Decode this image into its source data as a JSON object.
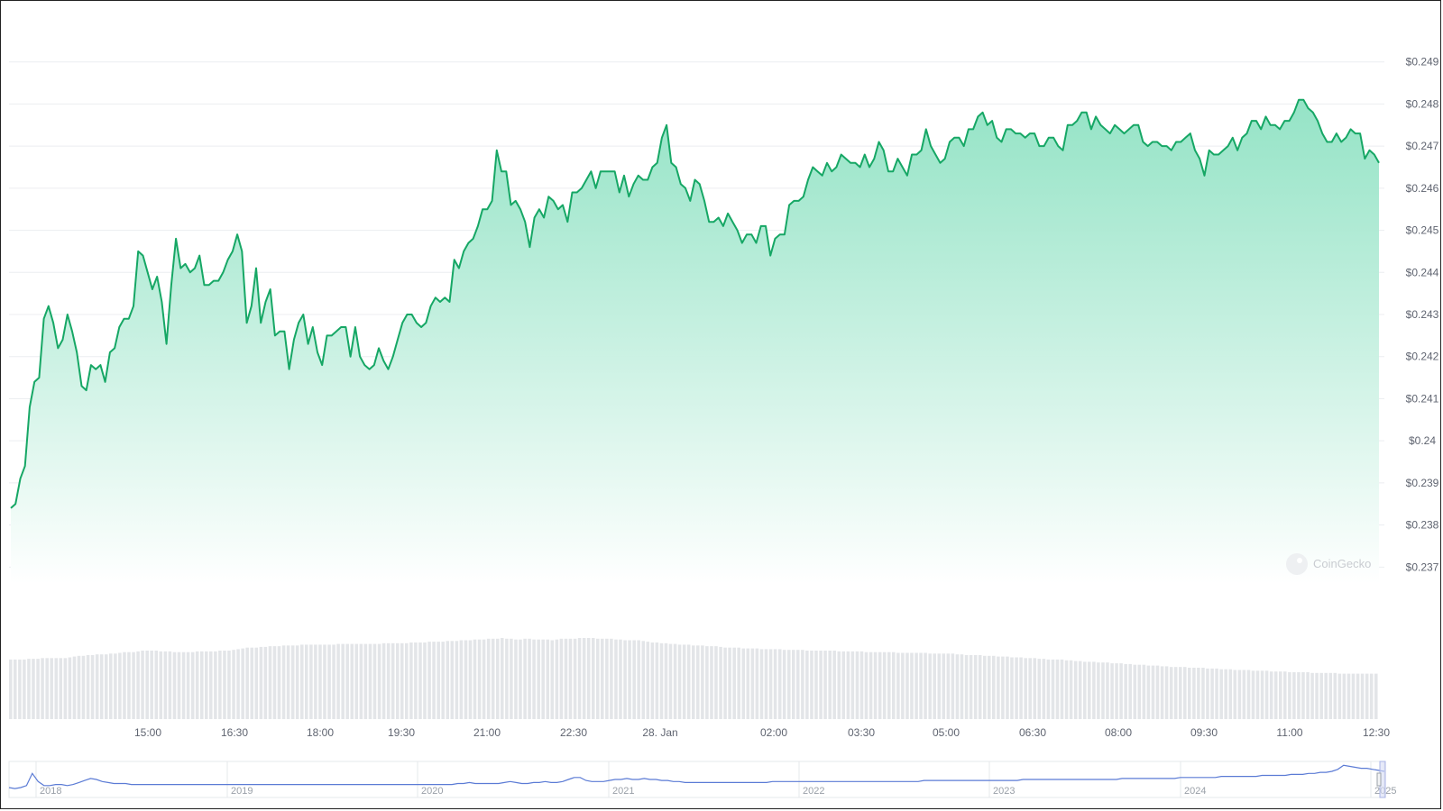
{
  "watermark": "CoinGecko",
  "colors": {
    "line": "#16a765",
    "fill_top": "#8fe2c3",
    "fill_bottom": "#ffffff",
    "volume": "#e3e5e8",
    "navigator_line": "#5b7bd5",
    "grid": "#eceef1",
    "axis_text": "#5f6470"
  },
  "chart_data": [
    {
      "type": "line",
      "title": "",
      "xlabel": "",
      "ylabel": "",
      "yticks": [
        "$0.237",
        "$0.238",
        "$0.239",
        "$0.24",
        "$0.241",
        "$0.242",
        "$0.243",
        "$0.244",
        "$0.245",
        "$0.246",
        "$0.247",
        "$0.248",
        "$0.249"
      ],
      "ylim": [
        0.2366,
        0.2494
      ],
      "xticks": [
        "15:00",
        "16:30",
        "18:00",
        "19:30",
        "21:00",
        "22:30",
        "28. Jan",
        "02:00",
        "03:30",
        "05:00",
        "06:30",
        "08:00",
        "09:30",
        "11:00",
        "12:30"
      ],
      "x_start": "27 Jan 12:36",
      "x_end": "28 Jan 12:30",
      "grid": true,
      "fill": "area-gradient",
      "price": [
        0.2384,
        0.2385,
        0.2391,
        0.2394,
        0.2408,
        0.2414,
        0.2415,
        0.2429,
        0.2432,
        0.2428,
        0.2422,
        0.2424,
        0.243,
        0.2426,
        0.2421,
        0.2413,
        0.2412,
        0.2418,
        0.2417,
        0.2418,
        0.2414,
        0.2421,
        0.2422,
        0.2427,
        0.2429,
        0.2429,
        0.2432,
        0.2445,
        0.2444,
        0.244,
        0.2436,
        0.2439,
        0.2433,
        0.2423,
        0.2437,
        0.2448,
        0.2441,
        0.2442,
        0.244,
        0.2441,
        0.2444,
        0.2437,
        0.2437,
        0.2438,
        0.2438,
        0.244,
        0.2443,
        0.2445,
        0.2449,
        0.2445,
        0.2428,
        0.2432,
        0.2441,
        0.2428,
        0.2433,
        0.2436,
        0.2425,
        0.2426,
        0.2426,
        0.2417,
        0.2424,
        0.2428,
        0.243,
        0.2423,
        0.2427,
        0.2421,
        0.2418,
        0.2425,
        0.2425,
        0.2426,
        0.2427,
        0.2427,
        0.242,
        0.2427,
        0.242,
        0.2418,
        0.2417,
        0.2418,
        0.2422,
        0.2419,
        0.2417,
        0.242,
        0.2424,
        0.2428,
        0.243,
        0.243,
        0.2428,
        0.2427,
        0.2428,
        0.2432,
        0.2434,
        0.2433,
        0.2434,
        0.2433,
        0.2443,
        0.2441,
        0.2445,
        0.2447,
        0.2448,
        0.2451,
        0.2455,
        0.2455,
        0.2457,
        0.2469,
        0.2464,
        0.2464,
        0.2456,
        0.2457,
        0.2455,
        0.2452,
        0.2446,
        0.2453,
        0.2455,
        0.2453,
        0.2458,
        0.2457,
        0.2455,
        0.2456,
        0.2452,
        0.2459,
        0.2459,
        0.246,
        0.2462,
        0.2464,
        0.246,
        0.2464,
        0.2464,
        0.2464,
        0.2464,
        0.2459,
        0.2463,
        0.2458,
        0.2461,
        0.2463,
        0.2462,
        0.2462,
        0.2465,
        0.2466,
        0.2472,
        0.2475,
        0.2466,
        0.2465,
        0.2461,
        0.246,
        0.2457,
        0.2462,
        0.2461,
        0.2457,
        0.2452,
        0.2452,
        0.2453,
        0.2451,
        0.2454,
        0.2452,
        0.245,
        0.2447,
        0.2449,
        0.2449,
        0.2447,
        0.2451,
        0.2451,
        0.2444,
        0.2448,
        0.2449,
        0.2449,
        0.2456,
        0.2457,
        0.2457,
        0.2458,
        0.2462,
        0.2465,
        0.2464,
        0.2463,
        0.2466,
        0.2464,
        0.2465,
        0.2468,
        0.2467,
        0.2466,
        0.2466,
        0.2465,
        0.2468,
        0.2465,
        0.2467,
        0.2471,
        0.2469,
        0.2464,
        0.2464,
        0.2467,
        0.2465,
        0.2463,
        0.2468,
        0.2468,
        0.2469,
        0.2474,
        0.247,
        0.2468,
        0.2466,
        0.2467,
        0.2471,
        0.2472,
        0.2472,
        0.247,
        0.2474,
        0.2474,
        0.2477,
        0.2478,
        0.2475,
        0.2476,
        0.2472,
        0.2471,
        0.2474,
        0.2474,
        0.2473,
        0.2473,
        0.2472,
        0.2473,
        0.2473,
        0.247,
        0.247,
        0.2472,
        0.2472,
        0.247,
        0.2469,
        0.2475,
        0.2475,
        0.2476,
        0.2478,
        0.2478,
        0.2474,
        0.2477,
        0.2475,
        0.2474,
        0.2473,
        0.2475,
        0.2474,
        0.2473,
        0.2474,
        0.2475,
        0.2475,
        0.2471,
        0.247,
        0.2471,
        0.2471,
        0.247,
        0.247,
        0.2469,
        0.2471,
        0.2471,
        0.2472,
        0.2473,
        0.2469,
        0.2467,
        0.2463,
        0.2469,
        0.2468,
        0.2468,
        0.2469,
        0.247,
        0.2472,
        0.2469,
        0.2472,
        0.2473,
        0.2476,
        0.2476,
        0.2474,
        0.2477,
        0.2475,
        0.2475,
        0.2474,
        0.2476,
        0.2476,
        0.2478,
        0.2481,
        0.2481,
        0.2479,
        0.2478,
        0.2476,
        0.2473,
        0.2471,
        0.2471,
        0.2473,
        0.2471,
        0.2472,
        0.2474,
        0.2473,
        0.2473,
        0.2467,
        0.2469,
        0.2468,
        0.2466
      ],
      "volume": [
        80,
        80,
        80,
        80,
        81,
        81,
        81,
        82,
        82,
        82,
        82,
        82,
        82,
        83,
        84,
        85,
        85,
        86,
        86,
        87,
        87,
        87,
        88,
        88,
        89,
        90,
        90,
        90,
        91,
        92,
        92,
        92,
        92,
        91,
        91,
        91,
        90,
        90,
        90,
        90,
        90,
        91,
        91,
        91,
        91,
        91,
        92,
        92,
        92,
        93,
        94,
        95,
        96,
        96,
        96,
        97,
        97,
        98,
        98,
        98,
        99,
        99,
        99,
        99,
        100,
        100,
        100,
        100,
        100,
        100,
        100,
        100,
        101,
        101,
        101,
        101,
        101,
        101,
        101,
        101,
        101,
        101,
        102,
        102,
        102,
        102,
        102,
        102,
        103,
        103,
        103,
        103,
        104,
        104,
        104,
        104,
        105,
        105,
        105,
        106,
        106,
        106,
        107,
        107,
        107,
        108,
        108,
        108,
        109,
        108,
        108,
        107,
        107,
        108,
        108,
        107,
        107,
        107,
        107,
        106,
        107,
        108,
        108,
        108,
        108,
        109,
        109,
        109,
        109,
        108,
        108,
        108,
        108,
        107,
        107,
        106,
        106,
        106,
        106,
        105,
        104,
        103,
        103,
        102,
        102,
        101,
        101,
        100,
        100,
        100,
        99,
        99,
        99,
        98,
        98,
        98,
        97,
        96,
        96,
        96,
        96,
        95,
        95,
        95,
        95,
        94,
        94,
        94,
        94,
        94,
        93,
        93,
        93,
        93,
        93,
        92,
        92,
        92,
        92,
        92,
        92,
        92,
        91,
        91,
        91,
        91,
        91,
        91,
        90,
        90,
        90,
        90,
        90,
        90,
        90,
        89,
        89,
        89,
        89,
        89,
        89,
        89,
        88,
        88,
        88,
        88,
        88,
        88,
        87,
        87,
        86,
        86,
        86,
        86,
        85,
        85,
        85,
        84,
        84,
        84,
        83,
        83,
        83,
        82,
        82,
        82,
        81,
        81,
        80,
        80,
        80,
        80,
        79,
        79,
        78,
        78,
        77,
        77,
        77,
        76,
        76,
        76,
        75,
        75,
        75,
        74,
        74,
        73,
        73,
        73,
        72,
        72,
        72,
        71,
        71,
        70,
        70,
        70,
        70,
        69,
        69,
        69,
        69,
        68,
        68,
        68,
        67,
        67,
        67,
        66,
        66,
        66,
        66,
        65,
        65,
        65,
        65,
        64,
        64,
        64,
        64,
        63,
        63,
        63,
        63,
        63,
        62,
        62,
        62,
        62,
        62,
        62,
        61,
        61,
        61,
        61,
        61,
        61,
        61,
        61,
        61
      ]
    },
    {
      "type": "line",
      "title": "",
      "xticks": [
        "2018",
        "2019",
        "2020",
        "2021",
        "2022",
        "2023",
        "2024",
        "2025"
      ],
      "values": [
        0.08,
        0.07,
        0.08,
        0.1,
        0.22,
        0.14,
        0.1,
        0.1,
        0.11,
        0.11,
        0.1,
        0.11,
        0.13,
        0.15,
        0.17,
        0.16,
        0.14,
        0.13,
        0.12,
        0.12,
        0.12,
        0.11,
        0.11,
        0.11,
        0.11,
        0.11,
        0.11,
        0.11,
        0.11,
        0.11,
        0.11,
        0.11,
        0.11,
        0.11,
        0.11,
        0.11,
        0.11,
        0.11,
        0.11,
        0.11,
        0.11,
        0.11,
        0.11,
        0.11,
        0.11,
        0.11,
        0.11,
        0.11,
        0.11,
        0.11,
        0.11,
        0.11,
        0.11,
        0.11,
        0.11,
        0.11,
        0.11,
        0.11,
        0.11,
        0.11,
        0.11,
        0.11,
        0.11,
        0.11,
        0.11,
        0.11,
        0.11,
        0.11,
        0.11,
        0.11,
        0.11,
        0.11,
        0.11,
        0.11,
        0.11,
        0.11,
        0.11,
        0.12,
        0.12,
        0.13,
        0.12,
        0.12,
        0.12,
        0.12,
        0.12,
        0.13,
        0.14,
        0.13,
        0.12,
        0.12,
        0.13,
        0.13,
        0.14,
        0.13,
        0.13,
        0.14,
        0.16,
        0.18,
        0.18,
        0.15,
        0.14,
        0.14,
        0.14,
        0.15,
        0.16,
        0.16,
        0.17,
        0.16,
        0.16,
        0.17,
        0.16,
        0.16,
        0.15,
        0.15,
        0.14,
        0.14,
        0.13,
        0.13,
        0.13,
        0.13,
        0.13,
        0.13,
        0.13,
        0.13,
        0.13,
        0.13,
        0.13,
        0.13,
        0.13,
        0.13,
        0.13,
        0.14,
        0.14,
        0.14,
        0.14,
        0.14,
        0.14,
        0.14,
        0.14,
        0.14,
        0.14,
        0.14,
        0.14,
        0.14,
        0.14,
        0.14,
        0.14,
        0.14,
        0.14,
        0.14,
        0.14,
        0.14,
        0.14,
        0.14,
        0.14,
        0.14,
        0.14,
        0.15,
        0.15,
        0.15,
        0.15,
        0.15,
        0.15,
        0.15,
        0.15,
        0.15,
        0.15,
        0.15,
        0.15,
        0.15,
        0.15,
        0.15,
        0.15,
        0.15,
        0.16,
        0.16,
        0.16,
        0.16,
        0.16,
        0.16,
        0.16,
        0.16,
        0.16,
        0.16,
        0.16,
        0.16,
        0.16,
        0.16,
        0.16,
        0.16,
        0.16,
        0.17,
        0.17,
        0.17,
        0.17,
        0.17,
        0.17,
        0.17,
        0.17,
        0.17,
        0.17,
        0.18,
        0.18,
        0.18,
        0.18,
        0.18,
        0.18,
        0.18,
        0.19,
        0.19,
        0.19,
        0.19,
        0.19,
        0.19,
        0.19,
        0.2,
        0.2,
        0.2,
        0.2,
        0.2,
        0.21,
        0.21,
        0.21,
        0.22,
        0.22,
        0.23,
        0.23,
        0.24,
        0.26,
        0.3,
        0.29,
        0.28,
        0.27,
        0.27,
        0.26,
        0.25,
        0.24
      ]
    }
  ]
}
